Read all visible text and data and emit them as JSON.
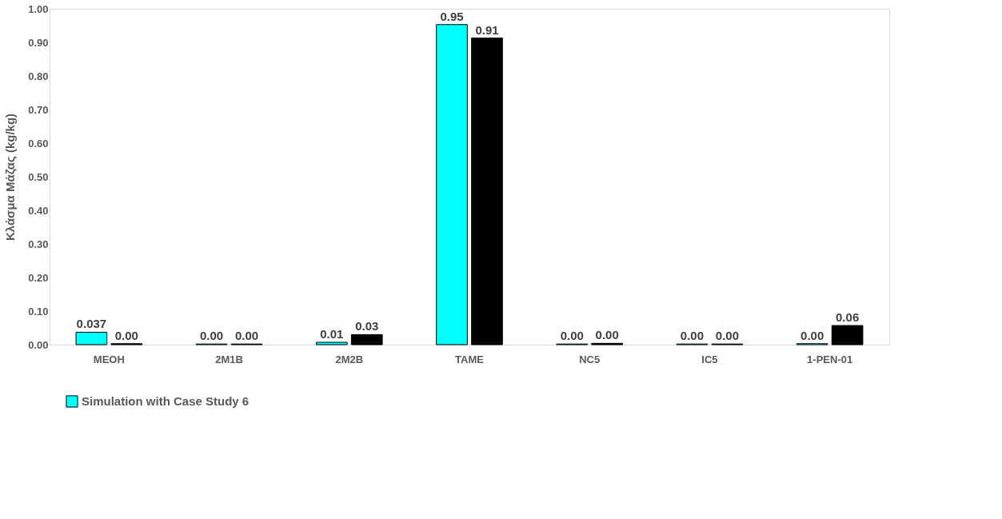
{
  "chart_data": {
    "type": "bar",
    "ylabel": "Κλάσμα Μάζας (kg/kg)",
    "categories": [
      "MEOH",
      "2M1B",
      "2M2B",
      "TAME",
      "NC5",
      "IC5",
      "1-PEN-01"
    ],
    "series": [
      {
        "name": "Simulation with Case Study 6",
        "color": "#00ffff",
        "values": [
          0.037,
          0.002,
          0.007,
          0.953,
          0.002,
          0.002,
          0.003
        ],
        "value_labels": [
          "0.037",
          "0.00",
          "0.01",
          "0.95",
          "0.00",
          "0.00",
          "0.00"
        ]
      },
      {
        "color": "#000000",
        "values": [
          0.003,
          0.002,
          0.03,
          0.913,
          0.004,
          0.002,
          0.057
        ],
        "value_labels": [
          "0.00",
          "0.00",
          "0.03",
          "0.91",
          "0.00",
          "0.00",
          "0.06"
        ]
      }
    ],
    "ylim": [
      0,
      1
    ],
    "yticks": [
      {
        "value": 0,
        "label": "0.00"
      },
      {
        "value": 0.1,
        "label": "0.10"
      },
      {
        "value": 0.2,
        "label": "0.20"
      },
      {
        "value": 0.3,
        "label": "0.30"
      },
      {
        "value": 0.4,
        "label": "0.40"
      },
      {
        "value": 0.5,
        "label": "0.50"
      },
      {
        "value": 0.6,
        "label": "0.60"
      },
      {
        "value": 0.7,
        "label": "0.70"
      },
      {
        "value": 0.8,
        "label": "0.80"
      },
      {
        "value": 0.9,
        "label": "0.90"
      },
      {
        "value": 1,
        "label": "1.00"
      }
    ],
    "grid": false,
    "legend": "bottom"
  }
}
